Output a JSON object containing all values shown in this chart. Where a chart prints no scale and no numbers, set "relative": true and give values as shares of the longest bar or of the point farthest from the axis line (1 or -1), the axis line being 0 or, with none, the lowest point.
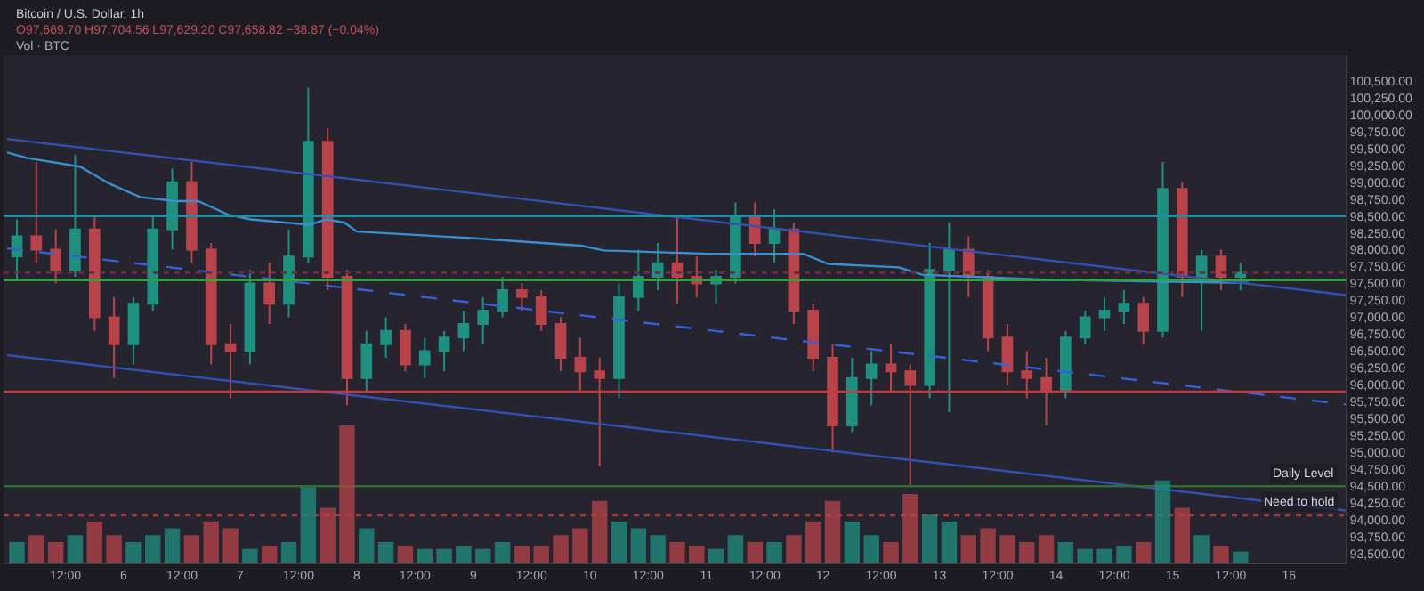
{
  "chart_data": [
    {
      "type": "candlestick",
      "title": "Bitcoin / U.S. Dollar, 1h",
      "subtitle": "O97,669.70 H97,704.56 L97,629.20 C97,658.82 −38.87 (−0.04%)",
      "annotations": [
        "Vol · BTC"
      ],
      "x": [
        "--02-05T02:00",
        "--02-05T06:00",
        "--02-05T10:00",
        "--02-05T14:00",
        "--02-05T18:00",
        "--02-05T22:00",
        "--02-06T02:00",
        "--02-06T06:00",
        "--02-06T10:00",
        "--02-06T14:00",
        "--02-06T18:00",
        "--02-06T22:00",
        "--02-07T02:00",
        "--02-07T06:00",
        "--02-07T10:00",
        "--02-07T14:00",
        "--02-07T18:00",
        "--02-07T22:00",
        "--02-08T02:00",
        "--02-08T06:00",
        "--02-08T10:00",
        "--02-08T14:00",
        "--02-08T18:00",
        "--02-08T22:00",
        "--02-09T02:00",
        "--02-09T06:00",
        "--02-09T10:00",
        "--02-09T14:00",
        "--02-09T18:00",
        "--02-09T22:00",
        "--02-10T02:00",
        "--02-10T06:00",
        "--02-10T10:00",
        "--02-10T14:00",
        "--02-10T18:00",
        "--02-10T22:00",
        "--02-11T02:00",
        "--02-11T06:00",
        "--02-11T10:00",
        "--02-11T14:00",
        "--02-11T18:00",
        "--02-11T22:00",
        "--02-12T02:00",
        "--02-12T06:00",
        "--02-12T10:00",
        "--02-12T14:00",
        "--02-12T18:00",
        "--02-12T22:00",
        "--02-13T02:00",
        "--02-13T06:00",
        "--02-13T10:00",
        "--02-13T14:00",
        "--02-13T18:00",
        "--02-13T22:00",
        "--02-14T02:00",
        "--02-14T06:00",
        "--02-14T10:00",
        "--02-14T14:00",
        "--02-14T18:00",
        "--02-14T22:00",
        "--02-15T02:00",
        "--02-15T06:00",
        "--02-15T10:00",
        "--02-15T14:00"
      ],
      "ohlc": [
        [
          97900,
          98450,
          97550,
          98200
        ],
        [
          98200,
          99300,
          97800,
          98000
        ],
        [
          98000,
          98300,
          97500,
          97700
        ],
        [
          97700,
          99400,
          97600,
          98300
        ],
        [
          98300,
          98500,
          96800,
          97000
        ],
        [
          97000,
          97300,
          96100,
          96600
        ],
        [
          96600,
          97300,
          96300,
          97200
        ],
        [
          97200,
          98500,
          97100,
          98300
        ],
        [
          98300,
          99200,
          98000,
          99000
        ],
        [
          99000,
          99300,
          97800,
          98000
        ],
        [
          98000,
          98100,
          96300,
          96600
        ],
        [
          96600,
          96900,
          95800,
          96500
        ],
        [
          96500,
          97700,
          96300,
          97500
        ],
        [
          97500,
          97800,
          96900,
          97200
        ],
        [
          97200,
          98300,
          97000,
          97900
        ],
        [
          97900,
          100400,
          97800,
          99600
        ],
        [
          99600,
          99800,
          97400,
          97600
        ],
        [
          97600,
          97700,
          95700,
          96100
        ],
        [
          96100,
          96800,
          95900,
          96600
        ],
        [
          96600,
          97000,
          96400,
          96800
        ],
        [
          96800,
          96900,
          96200,
          96300
        ],
        [
          96300,
          96700,
          96100,
          96500
        ],
        [
          96500,
          96800,
          96200,
          96700
        ],
        [
          96700,
          97100,
          96500,
          96900
        ],
        [
          96900,
          97300,
          96600,
          97100
        ],
        [
          97100,
          97600,
          97000,
          97400
        ],
        [
          97400,
          97500,
          97100,
          97300
        ],
        [
          97300,
          97400,
          96800,
          96900
        ],
        [
          96900,
          97000,
          96200,
          96400
        ],
        [
          96400,
          96700,
          95900,
          96200
        ],
        [
          96200,
          96400,
          94800,
          96100
        ],
        [
          96100,
          97500,
          95800,
          97300
        ],
        [
          97300,
          98000,
          97100,
          97600
        ],
        [
          97600,
          98100,
          97400,
          97800
        ],
        [
          97800,
          98500,
          97200,
          97600
        ],
        [
          97600,
          97900,
          97300,
          97500
        ],
        [
          97500,
          97700,
          97200,
          97600
        ],
        [
          97600,
          98700,
          97500,
          98500
        ],
        [
          98500,
          98700,
          97900,
          98100
        ],
        [
          98100,
          98600,
          97800,
          98300
        ],
        [
          98300,
          98400,
          96900,
          97100
        ],
        [
          97100,
          97200,
          96200,
          96400
        ],
        [
          96400,
          96600,
          95000,
          95400
        ],
        [
          95400,
          96400,
          95300,
          96100
        ],
        [
          96100,
          96500,
          95700,
          96300
        ],
        [
          96300,
          96600,
          95900,
          96200
        ],
        [
          96200,
          96300,
          94500,
          96000
        ],
        [
          96000,
          98100,
          95800,
          97700
        ],
        [
          97700,
          98400,
          95600,
          98000
        ],
        [
          98000,
          98200,
          97300,
          97600
        ],
        [
          97600,
          97700,
          96500,
          96700
        ],
        [
          96700,
          96900,
          96000,
          96200
        ],
        [
          96200,
          96500,
          95800,
          96100
        ],
        [
          96100,
          96400,
          95400,
          95900
        ],
        [
          95900,
          96800,
          95800,
          96700
        ],
        [
          96700,
          97100,
          96600,
          97000
        ],
        [
          97000,
          97300,
          96800,
          97100
        ],
        [
          97100,
          97400,
          96900,
          97200
        ],
        [
          97200,
          97300,
          96600,
          96800
        ],
        [
          96800,
          99300,
          96700,
          98900
        ],
        [
          98900,
          99000,
          97300,
          97600
        ],
        [
          97600,
          98000,
          96800,
          97900
        ],
        [
          97900,
          98000,
          97400,
          97600
        ],
        [
          97600,
          97800,
          97400,
          97660
        ]
      ],
      "colors": [
        "#1f8f80",
        "#b8434b",
        "#b8434b",
        "#1f8f80",
        "#b8434b",
        "#b8434b",
        "#1f8f80",
        "#1f8f80",
        "#1f8f80",
        "#b8434b",
        "#b8434b",
        "#b8434b",
        "#1f8f80",
        "#b8434b",
        "#1f8f80",
        "#1f8f80",
        "#b8434b",
        "#b8434b",
        "#1f8f80",
        "#1f8f80",
        "#b8434b",
        "#1f8f80",
        "#1f8f80",
        "#1f8f80",
        "#1f8f80",
        "#1f8f80",
        "#b8434b",
        "#b8434b",
        "#b8434b",
        "#b8434b",
        "#b8434b",
        "#1f8f80",
        "#1f8f80",
        "#1f8f80",
        "#b8434b",
        "#b8434b",
        "#1f8f80",
        "#1f8f80",
        "#b8434b",
        "#1f8f80",
        "#b8434b",
        "#b8434b",
        "#b8434b",
        "#1f8f80",
        "#1f8f80",
        "#b8434b",
        "#b8434b",
        "#1f8f80",
        "#1f8f80",
        "#b8434b",
        "#b8434b",
        "#b8434b",
        "#b8434b",
        "#b8434b",
        "#1f8f80",
        "#1f8f80",
        "#1f8f80",
        "#1f8f80",
        "#b8434b",
        "#1f8f80",
        "#b8434b",
        "#1f8f80",
        "#b8434b",
        "#1f8f80"
      ],
      "series": [
        {
          "type": "line",
          "color": "#3a8fd0",
          "line_style": "solid",
          "x": [
            "--02-05T00:00",
            "--02-05T04:00",
            "--02-05T15:00",
            "--02-05T21:00",
            "--02-06T03:20",
            "--02-06T10:30",
            "--02-06T15:20",
            "--02-06T21:30",
            "--02-07T02:10",
            "--02-07T14:10",
            "--02-07T17:50",
            "--02-07T21:30",
            "--02-08T00:00",
            "--02-08T12:00",
            "--02-09T00:20",
            "--02-09T22:10",
            "--02-10T02:50",
            "--02-11T00:40",
            "--02-11T20:00",
            "--02-12T01:05",
            "--02-12T15:35",
            "--02-12T20:25",
            "--02-13T20:45",
            "--02-14T20:45",
            "--02-15T15:35"
          ],
          "values": [
            99440,
            99360,
            99230,
            98980,
            98780,
            98720,
            98720,
            98520,
            98450,
            98370,
            98450,
            98400,
            98270,
            98220,
            98170,
            98060,
            97990,
            97940,
            97940,
            97790,
            97740,
            97630,
            97560,
            97530,
            97510
          ]
        },
        {
          "type": "line",
          "color": "#3450b0",
          "line_style": "solid",
          "x": [
            "--02-05T00:00",
            "--02-16T11:40"
          ],
          "values": [
            99640,
            97330
          ]
        },
        {
          "type": "line",
          "color": "#3560d8",
          "line_style": "dashed",
          "x": [
            "--02-05T00:00",
            "--02-16T11:40"
          ],
          "values": [
            98020,
            95710
          ]
        },
        {
          "type": "line",
          "color": "#3450b0",
          "line_style": "solid",
          "x": [
            "--02-05T00:00",
            "--02-16T11:40"
          ],
          "values": [
            96440,
            94140
          ]
        }
      ],
      "ref_lines": [
        {
          "axis": "y",
          "value": 98500,
          "color": "#1f8fa6",
          "line_style": "solid"
        },
        {
          "axis": "y",
          "value": 97550,
          "color": "#2ea43a",
          "line_style": "solid"
        },
        {
          "axis": "y",
          "value": 97660,
          "color": "#6a2e38",
          "line_style": "dotted"
        },
        {
          "axis": "y",
          "value": 95900,
          "color": "#c8383e",
          "line_style": "solid"
        },
        {
          "axis": "y",
          "value": 94500,
          "color": "#2d6e2d",
          "line_style": "solid",
          "label": "Daily Level"
        },
        {
          "axis": "y",
          "value": 94070,
          "color": "#a83a3a",
          "line_style": "dotted",
          "label": "Need to hold"
        }
      ],
      "xlim": [
        "--02-04T23:15",
        "--02-16T11:40"
      ],
      "xticks": [
        {
          "value": "--02-05T12:00",
          "label": "12:00"
        },
        {
          "value": "--02-06",
          "label": "6"
        },
        {
          "value": "--02-06T12:00",
          "label": "12:00"
        },
        {
          "value": "--02-07",
          "label": "7"
        },
        {
          "value": "--02-07T12:00",
          "label": "12:00"
        },
        {
          "value": "--02-08",
          "label": "8"
        },
        {
          "value": "--02-08T12:00",
          "label": "12:00"
        },
        {
          "value": "--02-09",
          "label": "9"
        },
        {
          "value": "--02-09T12:00",
          "label": "12:00"
        },
        {
          "value": "--02-10",
          "label": "10"
        },
        {
          "value": "--02-10T12:00",
          "label": "12:00"
        },
        {
          "value": "--02-11",
          "label": "11"
        },
        {
          "value": "--02-11T12:00",
          "label": "12:00"
        },
        {
          "value": "--02-12",
          "label": "12"
        },
        {
          "value": "--02-12T12:00",
          "label": "12:00"
        },
        {
          "value": "--02-13",
          "label": "13"
        },
        {
          "value": "--02-13T12:00",
          "label": "12:00"
        },
        {
          "value": "--02-14",
          "label": "14"
        },
        {
          "value": "--02-14T12:00",
          "label": "12:00"
        },
        {
          "value": "--02-15",
          "label": "15"
        },
        {
          "value": "--02-15T12:00",
          "label": "12:00"
        },
        {
          "value": "--02-16",
          "label": "16"
        }
      ],
      "ylim": [
        93370,
        100880
      ],
      "yticks": [
        {
          "value": 93500,
          "label": "93,500.00"
        },
        {
          "value": 93750,
          "label": "93,750.00"
        },
        {
          "value": 94000,
          "label": "94,000.00"
        },
        {
          "value": 94250,
          "label": "94,250.00"
        },
        {
          "value": 94500,
          "label": "94,500.00"
        },
        {
          "value": 94750,
          "label": "94,750.00"
        },
        {
          "value": 95000,
          "label": "95,000.00"
        },
        {
          "value": 95250,
          "label": "95,250.00"
        },
        {
          "value": 95500,
          "label": "95,500.00"
        },
        {
          "value": 95750,
          "label": "95,750.00"
        },
        {
          "value": 96000,
          "label": "96,000.00"
        },
        {
          "value": 96250,
          "label": "96,250.00"
        },
        {
          "value": 96500,
          "label": "96,500.00"
        },
        {
          "value": 96750,
          "label": "96,750.00"
        },
        {
          "value": 97000,
          "label": "97,000.00"
        },
        {
          "value": 97250,
          "label": "97,250.00"
        },
        {
          "value": 97500,
          "label": "97,500.00"
        },
        {
          "value": 97750,
          "label": "97,750.00"
        },
        {
          "value": 98000,
          "label": "98,000.00"
        },
        {
          "value": 98250,
          "label": "98,250.00"
        },
        {
          "value": 98500,
          "label": "98,500.00"
        },
        {
          "value": 98750,
          "label": "98,750.00"
        },
        {
          "value": 99000,
          "label": "99,000.00"
        },
        {
          "value": 99250,
          "label": "99,250.00"
        },
        {
          "value": 99500,
          "label": "99,500.00"
        },
        {
          "value": 99750,
          "label": "99,750.00"
        },
        {
          "value": 100000,
          "label": "100,000.00"
        },
        {
          "value": 100250,
          "label": "100,250.00"
        },
        {
          "value": 100500,
          "label": "100,500.00"
        }
      ],
      "grid": false
    },
    {
      "type": "bar",
      "relative": true,
      "categories": [
        null,
        null,
        null,
        null,
        null,
        null,
        null,
        null,
        null,
        null,
        null,
        null,
        null,
        null,
        null,
        null,
        null,
        null,
        null,
        null,
        null,
        null,
        null,
        null,
        null,
        null,
        null,
        null,
        null,
        null,
        null,
        null,
        null,
        null,
        null,
        null,
        null,
        null,
        null,
        null,
        null,
        null,
        null,
        null,
        null,
        null,
        null,
        null,
        null,
        null,
        null,
        null,
        null,
        null,
        null,
        null,
        null,
        null,
        null,
        null,
        null,
        null,
        null,
        null
      ],
      "values": [
        0.15,
        0.2,
        0.15,
        0.2,
        0.3,
        0.2,
        0.15,
        0.2,
        0.25,
        0.2,
        0.3,
        0.25,
        0.1,
        0.12,
        0.15,
        0.55,
        0.4,
        1,
        0.25,
        0.15,
        0.12,
        0.1,
        0.1,
        0.12,
        0.1,
        0.15,
        0.12,
        0.12,
        0.2,
        0.25,
        0.45,
        0.3,
        0.25,
        0.2,
        0.15,
        0.12,
        0.1,
        0.2,
        0.15,
        0.15,
        0.2,
        0.3,
        0.45,
        0.3,
        0.2,
        0.15,
        0.5,
        0.35,
        0.3,
        0.2,
        0.25,
        0.2,
        0.15,
        0.2,
        0.15,
        0.1,
        0.1,
        0.12,
        0.15,
        0.6,
        0.4,
        0.2,
        0.12,
        0.08
      ],
      "colors": [
        "#1f8f80",
        "#b8434b",
        "#b8434b",
        "#1f8f80",
        "#b8434b",
        "#b8434b",
        "#1f8f80",
        "#1f8f80",
        "#1f8f80",
        "#b8434b",
        "#b8434b",
        "#b8434b",
        "#1f8f80",
        "#b8434b",
        "#1f8f80",
        "#1f8f80",
        "#b8434b",
        "#b8434b",
        "#1f8f80",
        "#1f8f80",
        "#b8434b",
        "#1f8f80",
        "#1f8f80",
        "#1f8f80",
        "#1f8f80",
        "#1f8f80",
        "#b8434b",
        "#b8434b",
        "#b8434b",
        "#b8434b",
        "#b8434b",
        "#1f8f80",
        "#1f8f80",
        "#1f8f80",
        "#b8434b",
        "#b8434b",
        "#1f8f80",
        "#1f8f80",
        "#b8434b",
        "#1f8f80",
        "#b8434b",
        "#b8434b",
        "#b8434b",
        "#1f8f80",
        "#1f8f80",
        "#b8434b",
        "#b8434b",
        "#1f8f80",
        "#1f8f80",
        "#b8434b",
        "#b8434b",
        "#b8434b",
        "#b8434b",
        "#b8434b",
        "#1f8f80",
        "#1f8f80",
        "#1f8f80",
        "#1f8f80",
        "#b8434b",
        "#1f8f80",
        "#b8434b",
        "#1f8f80",
        "#b8434b",
        "#1f8f80"
      ]
    }
  ]
}
